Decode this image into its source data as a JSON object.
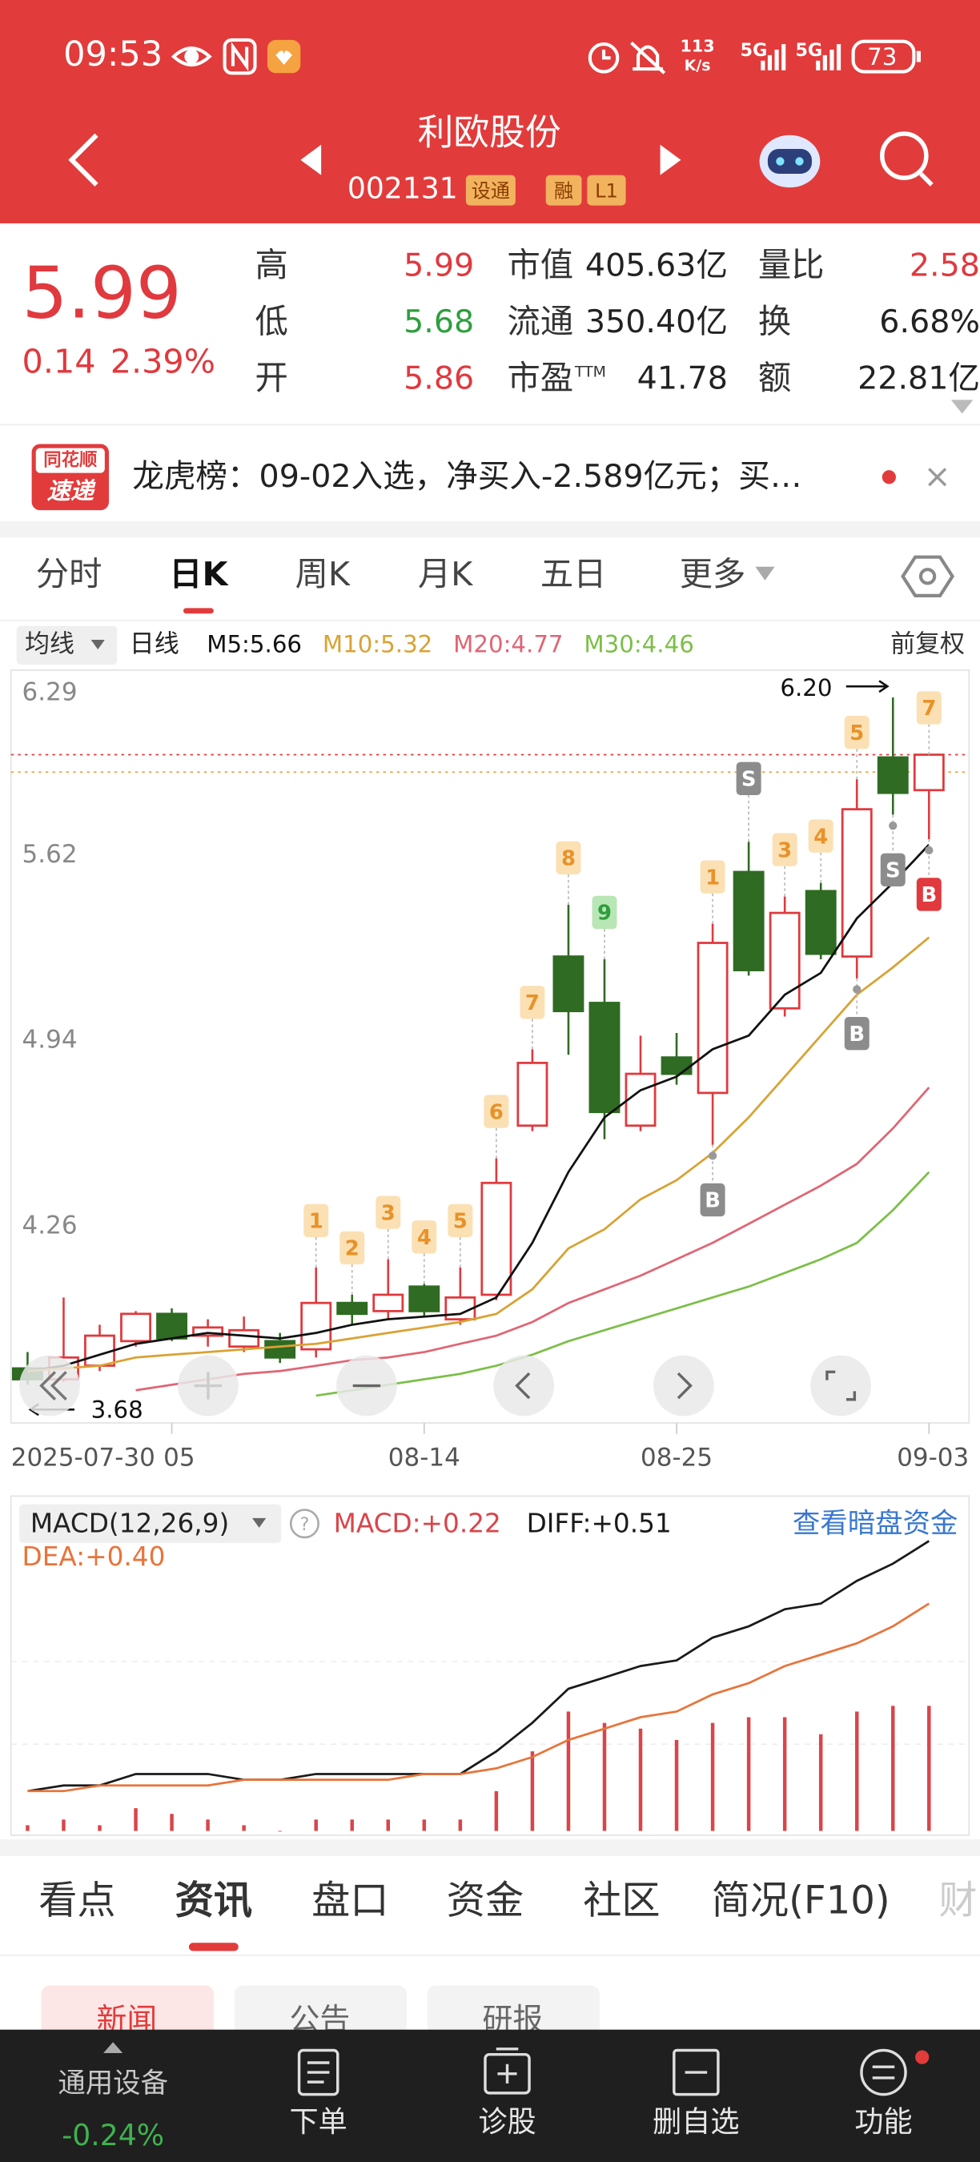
{
  "status_bar": {
    "time": "09:53",
    "net_speed": [
      "113",
      "K/s"
    ],
    "signal": [
      "5G",
      "5G"
    ],
    "battery": "73"
  },
  "header": {
    "title": "利欧股份",
    "code": "002131",
    "tags": [
      "设通",
      "融",
      "L1"
    ]
  },
  "quote": {
    "price": "5.99",
    "change": "0.14",
    "change_pct": "2.39%",
    "stats": [
      [
        {
          "label": "高",
          "value": "5.99",
          "tone": "up"
        },
        {
          "label": "市值",
          "value": "405.63亿",
          "tone": "flat"
        },
        {
          "label": "量比",
          "value": "2.58",
          "tone": "up"
        }
      ],
      [
        {
          "label": "低",
          "value": "5.68",
          "tone": "down"
        },
        {
          "label": "流通",
          "value": "350.40亿",
          "tone": "flat"
        },
        {
          "label": "换",
          "value": "6.68%",
          "tone": "flat"
        }
      ],
      [
        {
          "label": "开",
          "value": "5.86",
          "tone": "up"
        },
        {
          "label": "市盈",
          "label_sup": "TTM",
          "value": "41.78",
          "tone": "flat"
        },
        {
          "label": "额",
          "value": "22.81亿",
          "tone": "flat"
        }
      ]
    ]
  },
  "notice": {
    "badge_top": "同花顺",
    "badge_bottom": "速递",
    "text": "龙虎榜：09-02入选，净买入-2.589亿元；买…"
  },
  "chart_tabs": {
    "items": [
      "分时",
      "日K",
      "周K",
      "月K",
      "五日",
      "更多"
    ],
    "active": 1
  },
  "indicator_bar": {
    "mode": "均线",
    "period": "日线",
    "adjust": "前复权"
  },
  "chart_data": [
    {
      "type": "candlestick",
      "categories": [
        "2025-07-30",
        null,
        null,
        null,
        "05",
        null,
        null,
        null,
        null,
        null,
        null,
        "08-14",
        null,
        null,
        null,
        null,
        null,
        null,
        "08-25",
        null,
        null,
        null,
        null,
        null,
        null,
        "09-03"
      ],
      "open": [
        3.74,
        3.7,
        3.75,
        3.84,
        3.94,
        3.86,
        3.82,
        3.84,
        3.81,
        3.98,
        3.95,
        4.04,
        3.92,
        4.01,
        4.63,
        5.25,
        5.08,
        4.63,
        4.88,
        4.75,
        5.56,
        5.06,
        5.49,
        5.25,
        5.98,
        5.86
      ],
      "high": [
        3.8,
        4.0,
        3.9,
        3.95,
        3.96,
        3.92,
        3.93,
        3.87,
        4.11,
        4.01,
        4.14,
        4.05,
        4.11,
        4.51,
        4.91,
        5.44,
        5.24,
        4.96,
        4.97,
        5.37,
        5.67,
        5.47,
        5.52,
        5.9,
        6.2,
        5.99
      ],
      "low": [
        3.68,
        3.69,
        3.73,
        3.82,
        3.84,
        3.82,
        3.8,
        3.76,
        3.78,
        3.9,
        3.92,
        3.93,
        3.9,
        3.99,
        4.61,
        4.89,
        4.58,
        4.61,
        4.78,
        4.56,
        5.18,
        5.03,
        5.24,
        5.17,
        5.77,
        5.68
      ],
      "close": [
        3.7,
        3.78,
        3.86,
        3.94,
        3.85,
        3.89,
        3.88,
        3.78,
        3.98,
        3.94,
        4.01,
        3.95,
        4.0,
        4.42,
        4.86,
        5.05,
        4.68,
        4.82,
        4.82,
        5.3,
        5.2,
        5.41,
        5.26,
        5.79,
        5.85,
        5.99
      ],
      "up_color": "#e0393e",
      "down_color": "#2f6b22",
      "ylim": [
        3.54,
        6.29
      ],
      "yticks": [
        6.29,
        5.62,
        4.94,
        4.26
      ],
      "series": [
        {
          "name": "M5:5.66",
          "color": "#111111",
          "values": [
            3.73,
            3.75,
            3.79,
            3.83,
            3.85,
            3.87,
            3.86,
            3.85,
            3.87,
            3.9,
            3.92,
            3.93,
            3.94,
            4.0,
            4.2,
            4.46,
            4.66,
            4.76,
            4.81,
            4.91,
            4.96,
            5.11,
            5.19,
            5.39,
            5.52,
            5.66
          ]
        },
        {
          "name": "M10:5.32",
          "color": "#d9a233",
          "values": [
            3.73,
            3.74,
            3.75,
            3.78,
            3.79,
            3.8,
            3.81,
            3.82,
            3.83,
            3.85,
            3.87,
            3.89,
            3.91,
            3.94,
            4.03,
            4.18,
            4.25,
            4.36,
            4.43,
            4.53,
            4.66,
            4.81,
            4.96,
            5.11,
            5.21,
            5.32
          ]
        },
        {
          "name": "M20:4.77",
          "color": "#e06574",
          "values": [
            null,
            null,
            null,
            3.66,
            3.68,
            3.7,
            3.72,
            3.73,
            3.75,
            3.77,
            3.78,
            3.8,
            3.83,
            3.86,
            3.91,
            3.98,
            4.03,
            4.08,
            4.14,
            4.2,
            4.27,
            4.34,
            4.41,
            4.49,
            4.62,
            4.77
          ]
        },
        {
          "name": "M30:4.46",
          "color": "#7cbf48",
          "values": [
            null,
            null,
            null,
            null,
            null,
            null,
            null,
            null,
            3.64,
            3.66,
            3.68,
            3.7,
            3.72,
            3.75,
            3.79,
            3.84,
            3.88,
            3.92,
            3.96,
            4.0,
            4.04,
            4.09,
            4.14,
            4.2,
            4.32,
            4.46
          ]
        }
      ],
      "count_labels": [
        null,
        null,
        null,
        null,
        null,
        null,
        null,
        null,
        "1",
        "2",
        "3",
        "4",
        "5",
        "6",
        "7",
        "8",
        null,
        null,
        null,
        "1",
        null,
        "3",
        "4",
        "5",
        null,
        "7"
      ],
      "count_complete": [
        null,
        null,
        null,
        null,
        null,
        null,
        null,
        null,
        null,
        null,
        null,
        null,
        null,
        null,
        null,
        null,
        "9",
        null,
        null,
        null,
        null,
        null,
        null,
        null,
        null,
        null
      ],
      "signals_above": [
        null,
        null,
        null,
        null,
        null,
        null,
        null,
        null,
        null,
        null,
        null,
        null,
        null,
        null,
        null,
        null,
        null,
        null,
        null,
        null,
        "S",
        null,
        null,
        null,
        null,
        null
      ],
      "signals_below": [
        null,
        null,
        null,
        null,
        null,
        null,
        null,
        null,
        null,
        null,
        null,
        null,
        null,
        null,
        null,
        null,
        null,
        null,
        null,
        "B",
        null,
        null,
        null,
        "B",
        "S",
        "B"
      ],
      "max_label": [
        null,
        null,
        null,
        null,
        null,
        null,
        null,
        null,
        null,
        null,
        null,
        null,
        null,
        null,
        null,
        null,
        null,
        null,
        null,
        null,
        null,
        null,
        null,
        null,
        "6.20",
        null
      ],
      "min_label": [
        "3.68",
        null,
        null,
        null,
        null,
        null,
        null,
        null,
        null,
        null,
        null,
        null,
        null,
        null,
        null,
        null,
        null,
        null,
        null,
        null,
        null,
        null,
        null,
        null,
        null,
        null
      ]
    },
    {
      "type": "macd",
      "title": "MACD(12,26,9)",
      "link": "查看暗盘资金",
      "ylim": [
        -0.01,
        0.56
      ],
      "bars": {
        "name": "MACD:+0.22",
        "color": "#d9454a",
        "values": [
          0.01,
          0.02,
          0.01,
          0.04,
          0.03,
          0.02,
          0.01,
          0,
          0.02,
          0.02,
          0.02,
          0.02,
          0.02,
          0.07,
          0.14,
          0.21,
          0.19,
          0.18,
          0.16,
          0.19,
          0.2,
          0.2,
          0.17,
          0.21,
          0.22,
          0.22
        ]
      },
      "series": [
        {
          "name": "DIFF:+0.51",
          "color": "#1a1a1a",
          "values": [
            0.07,
            0.08,
            0.08,
            0.1,
            0.1,
            0.1,
            0.09,
            0.09,
            0.1,
            0.1,
            0.1,
            0.1,
            0.1,
            0.14,
            0.19,
            0.25,
            0.27,
            0.29,
            0.3,
            0.34,
            0.36,
            0.39,
            0.4,
            0.44,
            0.47,
            0.51
          ]
        },
        {
          "name": "DEA:+0.40",
          "color": "#e8743b",
          "values": [
            0.07,
            0.07,
            0.08,
            0.08,
            0.08,
            0.08,
            0.09,
            0.09,
            0.09,
            0.09,
            0.09,
            0.1,
            0.1,
            0.11,
            0.13,
            0.16,
            0.18,
            0.2,
            0.21,
            0.24,
            0.26,
            0.29,
            0.31,
            0.33,
            0.36,
            0.4
          ]
        }
      ]
    }
  ],
  "info_tabs": {
    "items": [
      "看点",
      "资讯",
      "盘口",
      "资金",
      "社区",
      "简况(F10)",
      "财"
    ],
    "active": 1
  },
  "sub_tabs": [
    "新闻",
    "公告",
    "研报"
  ],
  "nav": {
    "sector": {
      "name": "通用设备",
      "change": "-0.24%"
    },
    "items": [
      "下单",
      "诊股",
      "删自选",
      "功能"
    ]
  }
}
